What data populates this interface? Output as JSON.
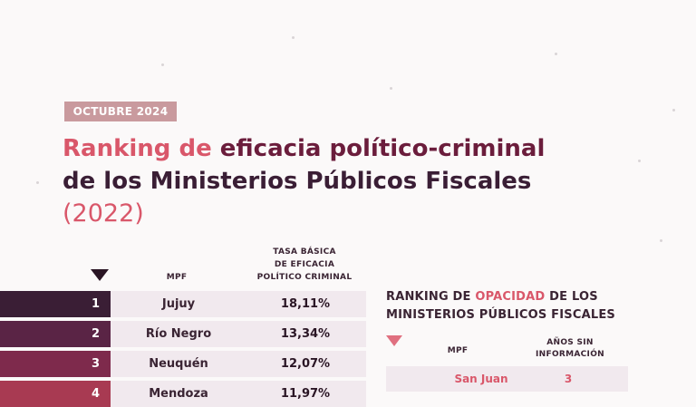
{
  "date_badge": "OCTUBRE 2024",
  "title": {
    "part1": "Ranking de ",
    "part2": "eficacia político-criminal",
    "line2": "de los Ministerios Públicos Fiscales",
    "year": "(2022)"
  },
  "ranking": {
    "col_mpf": "MPF",
    "col_tasa_1": "TASA BÁSICA",
    "col_tasa_2": "DE EFICACIA",
    "col_tasa_3": "POLÍTICO CRIMINAL",
    "rows": [
      {
        "rank": "1",
        "province": "Jujuy",
        "value": "18,11%",
        "color": "#3a1e35"
      },
      {
        "rank": "2",
        "province": "Río Negro",
        "value": "13,34%",
        "color": "#5a2445"
      },
      {
        "rank": "3",
        "province": "Neuquén",
        "value": "12,07%",
        "color": "#7e2a4c"
      },
      {
        "rank": "4",
        "province": "Mendoza",
        "value": "11,97%",
        "color": "#a83a52"
      }
    ]
  },
  "opacity": {
    "title_1a": "RANKING DE ",
    "title_1b": "OPACIDAD",
    "title_1c": " DE LOS",
    "title_2": "MINISTERIOS PÚBLICOS FISCALES",
    "col_mpf": "MPF",
    "col_years_1": "AÑOS SIN",
    "col_years_2": "INFORMACIÓN",
    "rows": [
      {
        "province": "San Juan",
        "years": "3"
      }
    ]
  }
}
